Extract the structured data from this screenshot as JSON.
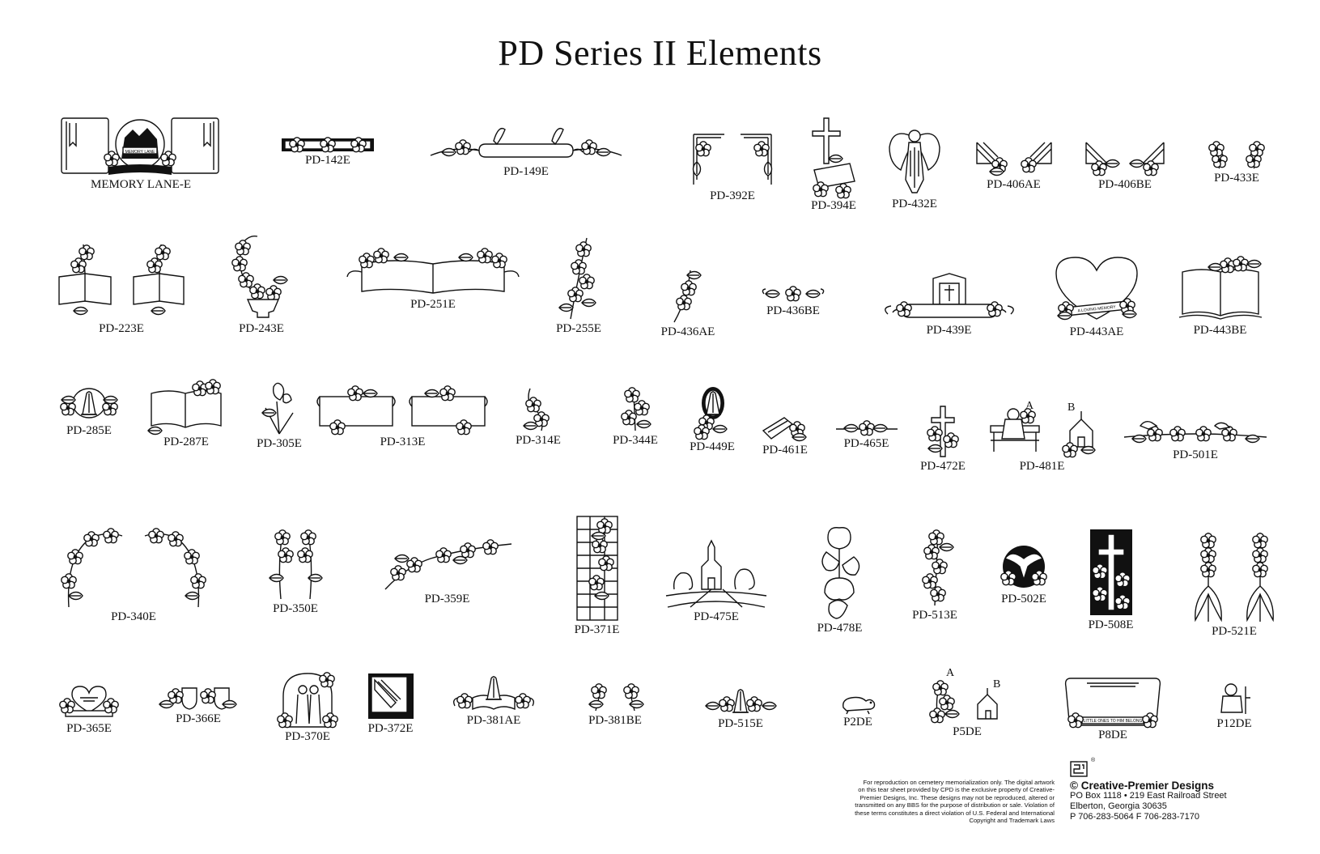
{
  "title": "PD Series II Elements",
  "elements": {
    "memory_lane": "MEMORY LANE-E",
    "memory_lane_sign": "MEMORY LANE",
    "pd142": "PD-142E",
    "pd149": "PD-149E",
    "pd392": "PD-392E",
    "pd394": "PD-394E",
    "pd432": "PD-432E",
    "pd406a": "PD-406AE",
    "pd406b": "PD-406BE",
    "pd433": "PD-433E",
    "pd223": "PD-223E",
    "pd243": "PD-243E",
    "pd251": "PD-251E",
    "pd255": "PD-255E",
    "pd436a": "PD-436AE",
    "pd436b": "PD-436BE",
    "pd439": "PD-439E",
    "pd443a": "PD-443AE",
    "pd443a_banner": "A LOVING MEMORY",
    "pd443b": "PD-443BE",
    "pd285": "PD-285E",
    "pd287": "PD-287E",
    "pd305": "PD-305E",
    "pd313": "PD-313E",
    "pd314": "PD-314E",
    "pd344": "PD-344E",
    "pd449": "PD-449E",
    "pd461": "PD-461E",
    "pd465": "PD-465E",
    "pd472": "PD-472E",
    "pd481": "PD-481E",
    "pd481_a": "A",
    "pd481_b": "B",
    "pd501": "PD-501E",
    "pd340": "PD-340E",
    "pd350": "PD-350E",
    "pd359": "PD-359E",
    "pd371": "PD-371E",
    "pd475": "PD-475E",
    "pd478": "PD-478E",
    "pd513": "PD-513E",
    "pd502": "PD-502E",
    "pd508": "PD-508E",
    "pd521": "PD-521E",
    "pd365": "PD-365E",
    "pd366": "PD-366E",
    "pd370": "PD-370E",
    "pd372": "PD-372E",
    "pd381a": "PD-381AE",
    "pd381b": "PD-381BE",
    "pd515": "PD-515E",
    "p2d": "P2DE",
    "p5d": "P5DE",
    "p5d_a": "A",
    "p5d_b": "B",
    "p8d": "P8DE",
    "p8d_banner": "LITTLE ONES TO HIM BELONG",
    "p12d": "P12DE"
  },
  "disclaimer": {
    "l1": "For reproduction on cemetery memorialization only. The digital artwork",
    "l2": "on this tear sheet provided by CPD is the exclusive property of Creative-",
    "l3": "Premier Designs, Inc. These designs may not be reproduced, altered or",
    "l4": "transmitted on any BBS for the purpose of distribution or sale. Violation of",
    "l5": "these terms constitutes a direct violation of U.S. Federal and International",
    "l6": "Copyright and Trademark Laws"
  },
  "company": {
    "name": "© Creative-Premier Designs",
    "address1": "PO Box 1118 • 219 East Railroad Street",
    "address2": "Elberton, Georgia 30635",
    "phone": "P 706-283-5064  F 706-283-7170",
    "registered": "®"
  }
}
